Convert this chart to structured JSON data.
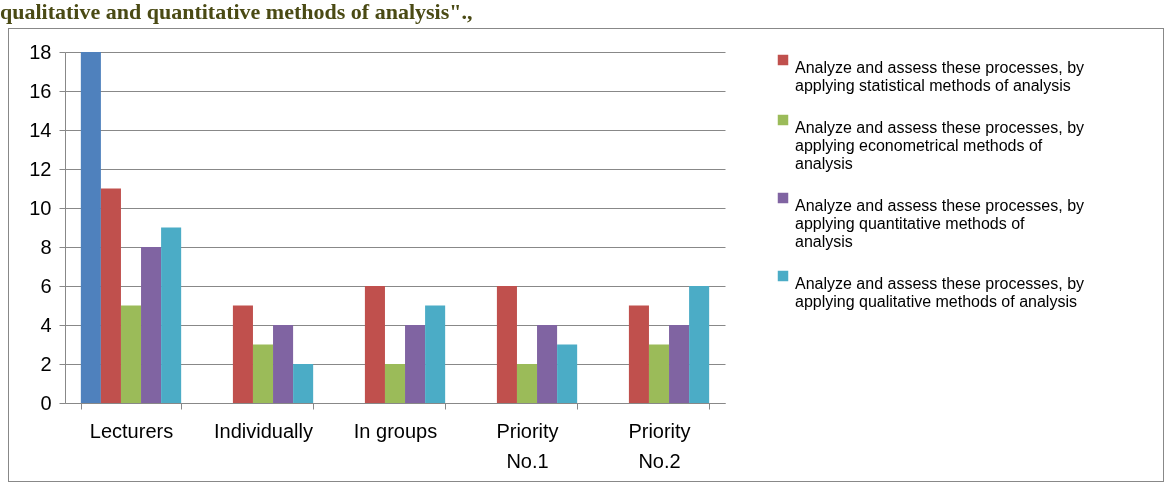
{
  "chart_data": {
    "type": "bar",
    "title": "qualitative and quantitative methods of analysis\".,",
    "categories": [
      "Lecturers",
      "Individually",
      "In groups",
      "Priority No.1",
      "Priority No.2"
    ],
    "series": [
      {
        "color": "#4f81bd",
        "values": [
          18,
          null,
          null,
          null,
          null
        ]
      },
      {
        "name": "Analyze and assess these processes, by applying statistical methods of analysis",
        "color": "#c0504d",
        "values": [
          11,
          5,
          6,
          6,
          5
        ]
      },
      {
        "name": "Analyze and assess these processes, by applying econometrical methods of analysis",
        "color": "#9bbb59",
        "values": [
          5,
          3,
          2,
          2,
          3
        ]
      },
      {
        "name": "Analyze and assess these processes, by applying  quantitative methods of analysis",
        "color": "#8064a2",
        "values": [
          8,
          4,
          4,
          4,
          4
        ]
      },
      {
        "name": "Analyze and assess these processes, by applying qualitative methods of analysis",
        "color": "#4bacc6",
        "values": [
          9,
          2,
          5,
          3,
          6
        ]
      }
    ],
    "ylim": [
      0,
      18
    ],
    "yticks": [
      0,
      2,
      4,
      6,
      8,
      10,
      12,
      14,
      16,
      18
    ],
    "grid": "y",
    "legend": "right"
  }
}
